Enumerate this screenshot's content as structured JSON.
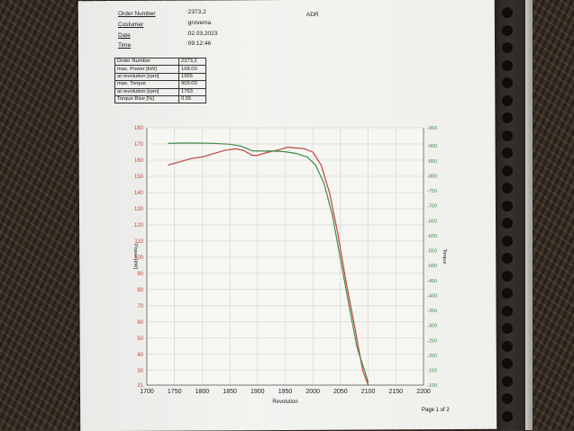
{
  "header": {
    "order_label": "Order Number",
    "order_value": ":2373,2",
    "customer_label": "Costumer",
    "customer_value": ":grovema",
    "date_label": "Date",
    "date_value": ":02.03.2023",
    "time_label": "Time",
    "time_value": ":09:12:46",
    "adr": "ADR"
  },
  "info_table": [
    {
      "label": "Order Number",
      "value": "2373,2"
    },
    {
      "label": "max. Power [kW]",
      "value": "168.00"
    },
    {
      "label": "at revolution [rpm]",
      "value": "1955"
    },
    {
      "label": "max. Torque",
      "value": "909.00"
    },
    {
      "label": "at revolution [rpm]",
      "value": "1763"
    },
    {
      "label": "Torque Rise [%]",
      "value": "0.55"
    }
  ],
  "footer": {
    "page": "Page 1 of 2"
  },
  "colors": {
    "power": "#c0443f",
    "torque": "#3f8a46",
    "left_axis": "#c0443f",
    "right_axis": "#3f8a46"
  },
  "chart_data": {
    "type": "line",
    "title": "",
    "xlabel": "Revolution",
    "ylabel": "Power [kW]",
    "y2label": "Torque",
    "xlim": [
      1700,
      2200
    ],
    "ylim": [
      21,
      180
    ],
    "y2lim": [
      100,
      960
    ],
    "grid": true,
    "x_ticks": [
      1700,
      1750,
      1800,
      1850,
      1900,
      1950,
      2000,
      2050,
      2100,
      2150,
      2200
    ],
    "y_ticks": [
      21,
      30,
      40,
      50,
      60,
      70,
      80,
      90,
      100,
      110,
      120,
      130,
      140,
      150,
      160,
      170,
      180
    ],
    "y2_ticks": [
      100,
      150,
      200,
      250,
      300,
      350,
      400,
      450,
      500,
      550,
      600,
      650,
      700,
      750,
      800,
      850,
      900,
      960
    ],
    "series": [
      {
        "axis": "left",
        "x": [
          1738,
          1760,
          1780,
          1800,
          1820,
          1840,
          1860,
          1875,
          1890,
          1900,
          1920,
          1940,
          1955,
          1970,
          1985,
          2000,
          2015,
          2030,
          2045,
          2060,
          2075,
          2090,
          2100
        ],
        "y": [
          157,
          159,
          161,
          162,
          164,
          166,
          167,
          166,
          163,
          163,
          165,
          166.5,
          168,
          167.5,
          167,
          165,
          157,
          140,
          115,
          85,
          58,
          30,
          21
        ]
      },
      {
        "axis": "right",
        "x": [
          1738,
          1763,
          1790,
          1820,
          1850,
          1870,
          1890,
          1910,
          1930,
          1950,
          1970,
          1990,
          2005,
          2020,
          2035,
          2050,
          2065,
          2080,
          2095,
          2100
        ],
        "y": [
          908,
          909,
          909,
          908,
          905,
          899,
          883,
          882,
          882,
          880,
          874,
          862,
          835,
          775,
          670,
          520,
          370,
          225,
          140,
          108
        ]
      }
    ]
  }
}
